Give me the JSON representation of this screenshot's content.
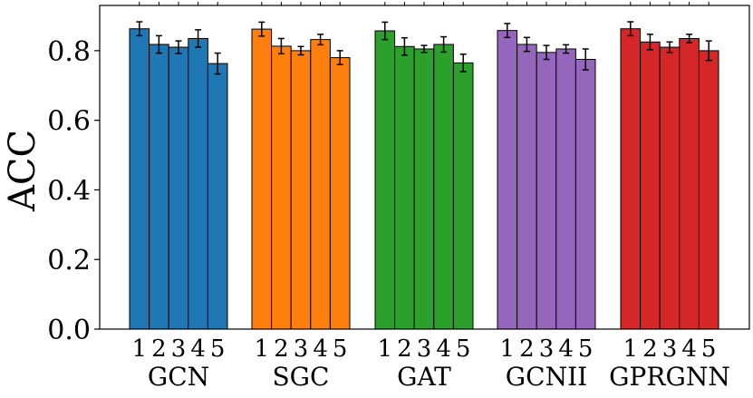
{
  "chart_data": {
    "type": "bar",
    "ylabel": "ACC",
    "xlabel": "",
    "ylim": [
      0.0,
      0.93
    ],
    "yticks": [
      0.0,
      0.2,
      0.4,
      0.6,
      0.8
    ],
    "yticks_text": [
      "0.0",
      "0.2",
      "0.4",
      "0.6",
      "0.8"
    ],
    "bar_index_labels": [
      "1",
      "2",
      "3",
      "4",
      "5"
    ],
    "groups": [
      {
        "name": "GCN",
        "color": "#1f77b4",
        "values": [
          0.863,
          0.818,
          0.81,
          0.835,
          0.763
        ],
        "errors": [
          0.02,
          0.025,
          0.018,
          0.025,
          0.03
        ]
      },
      {
        "name": "SGC",
        "color": "#ff7f0e",
        "values": [
          0.862,
          0.813,
          0.8,
          0.832,
          0.78
        ],
        "errors": [
          0.02,
          0.022,
          0.012,
          0.015,
          0.02
        ]
      },
      {
        "name": "GAT",
        "color": "#2ca02c",
        "values": [
          0.857,
          0.812,
          0.805,
          0.818,
          0.765
        ],
        "errors": [
          0.025,
          0.025,
          0.01,
          0.022,
          0.025
        ]
      },
      {
        "name": "GCNII",
        "color": "#9467bd",
        "values": [
          0.858,
          0.818,
          0.795,
          0.805,
          0.775
        ],
        "errors": [
          0.02,
          0.02,
          0.02,
          0.012,
          0.03
        ]
      },
      {
        "name": "GPRGNN",
        "color": "#d62728",
        "values": [
          0.863,
          0.825,
          0.81,
          0.835,
          0.8
        ],
        "errors": [
          0.02,
          0.022,
          0.015,
          0.012,
          0.028
        ]
      }
    ]
  }
}
